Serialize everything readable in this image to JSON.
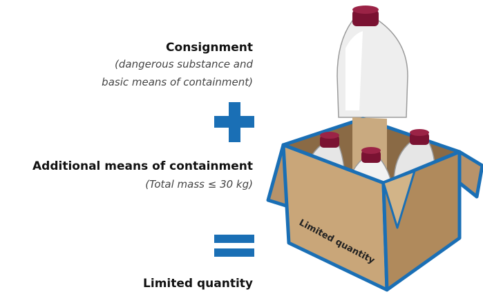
{
  "consignment": {
    "title": "Consignment",
    "note_lines": [
      "(dangerous substance and",
      "basic means of containment)"
    ]
  },
  "additional": {
    "title": "Additional means of containment",
    "note": "(Total mass ≤ 30 kg)"
  },
  "result": {
    "title": "Limited quantity"
  },
  "box_label": "Limited quantity"
}
